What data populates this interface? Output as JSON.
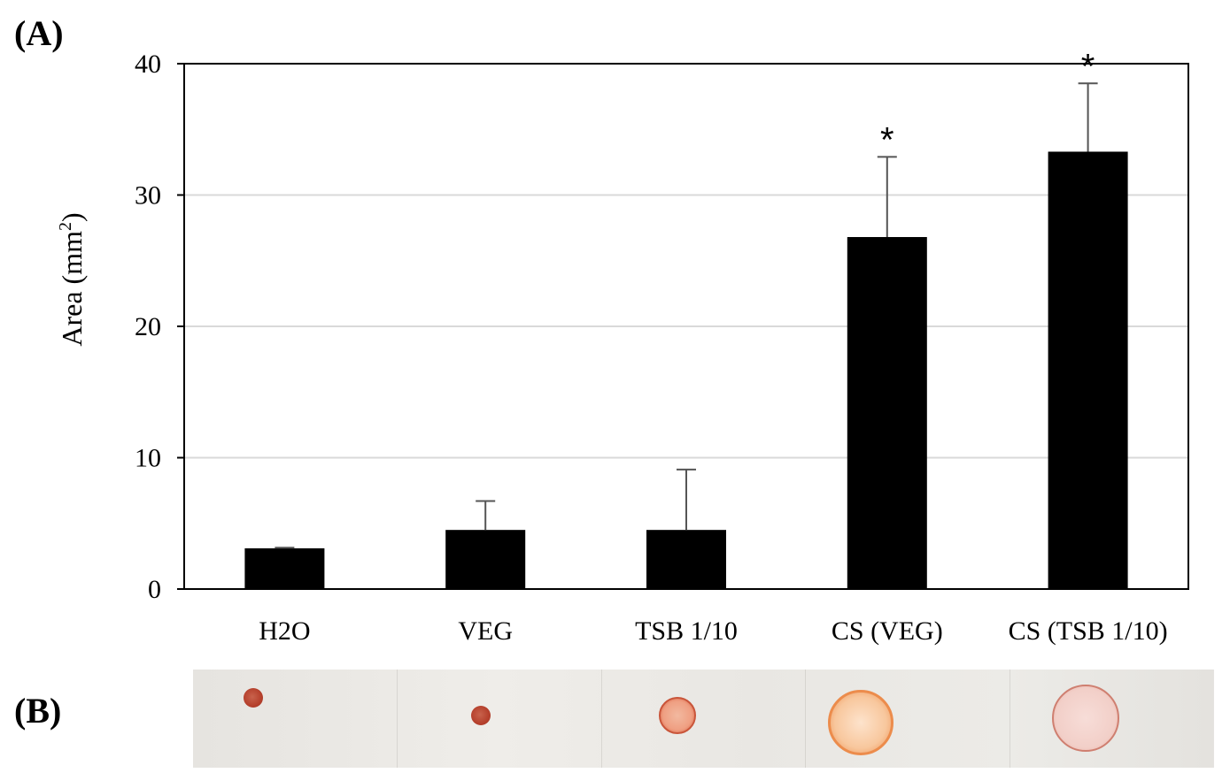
{
  "panel_a_label": "(A)",
  "panel_b_label": "(B)",
  "chart_data": {
    "type": "bar",
    "title": "",
    "xlabel": "",
    "ylabel": "Area (mm",
    "ylabel_superscript": "2",
    "ylabel_suffix": ")",
    "ylim": [
      0,
      40
    ],
    "yticks": [
      0,
      10,
      20,
      30,
      40
    ],
    "grid": true,
    "categories": [
      "H2O",
      "VEG",
      "TSB 1/10",
      "CS (VEG)",
      "CS (TSB 1/10)"
    ],
    "values": [
      3.1,
      4.5,
      4.5,
      26.8,
      33.3
    ],
    "error_upper": [
      0.05,
      2.2,
      4.6,
      6.1,
      5.2
    ],
    "significance": [
      "",
      "",
      "",
      "*",
      "*"
    ],
    "bar_color": "#000000",
    "grid_color": "#d9d9d9"
  },
  "photos": [
    {
      "category": "H2O",
      "spot": "small-dark-red"
    },
    {
      "category": "VEG",
      "spot": "small-dark-red"
    },
    {
      "category": "TSB 1/10",
      "spot": "medium-orange-ring"
    },
    {
      "category": "CS (VEG)",
      "spot": "large-orange-halo"
    },
    {
      "category": "CS (TSB 1/10)",
      "spot": "large-pink-halo"
    }
  ]
}
